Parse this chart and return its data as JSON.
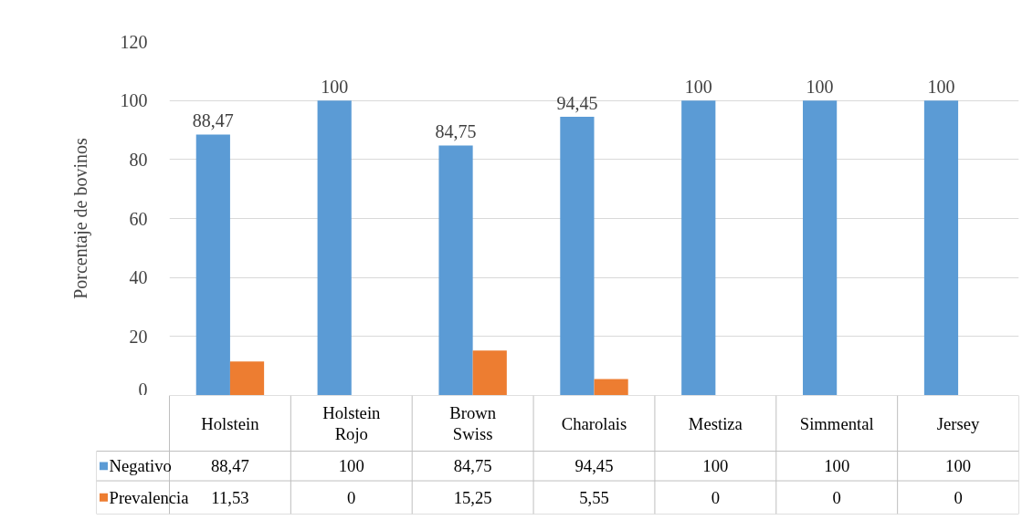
{
  "chart_data": {
    "type": "bar",
    "ylabel": "Porcentaje de bovinos",
    "categories": [
      "Holstein",
      "Holstein\nRojo",
      "Brown\nSwiss",
      "Charolais",
      "Mestiza",
      "Simmental",
      "Jersey"
    ],
    "series": [
      {
        "name": "Negativo",
        "color": "#5b9bd5",
        "values": [
          88.47,
          100,
          84.75,
          94.45,
          100,
          100,
          100
        ],
        "value_labels": [
          "88,47",
          "100",
          "84,75",
          "94,45",
          "100",
          "100",
          "100"
        ]
      },
      {
        "name": "Prevalencia",
        "color": "#ed7d31",
        "values": [
          11.53,
          0,
          15.25,
          5.55,
          0,
          0,
          0
        ],
        "value_labels": [
          "11,53",
          "0",
          "15,25",
          "5,55",
          "0",
          "0",
          "0"
        ]
      }
    ],
    "annotations": [
      "88,47",
      "100",
      "84,75",
      "94,45",
      "100",
      "100",
      "100"
    ],
    "ylim": [
      0,
      120
    ],
    "yticks": [
      0,
      20,
      40,
      60,
      80,
      100,
      120
    ],
    "grid": "y",
    "legend": "bottom"
  }
}
